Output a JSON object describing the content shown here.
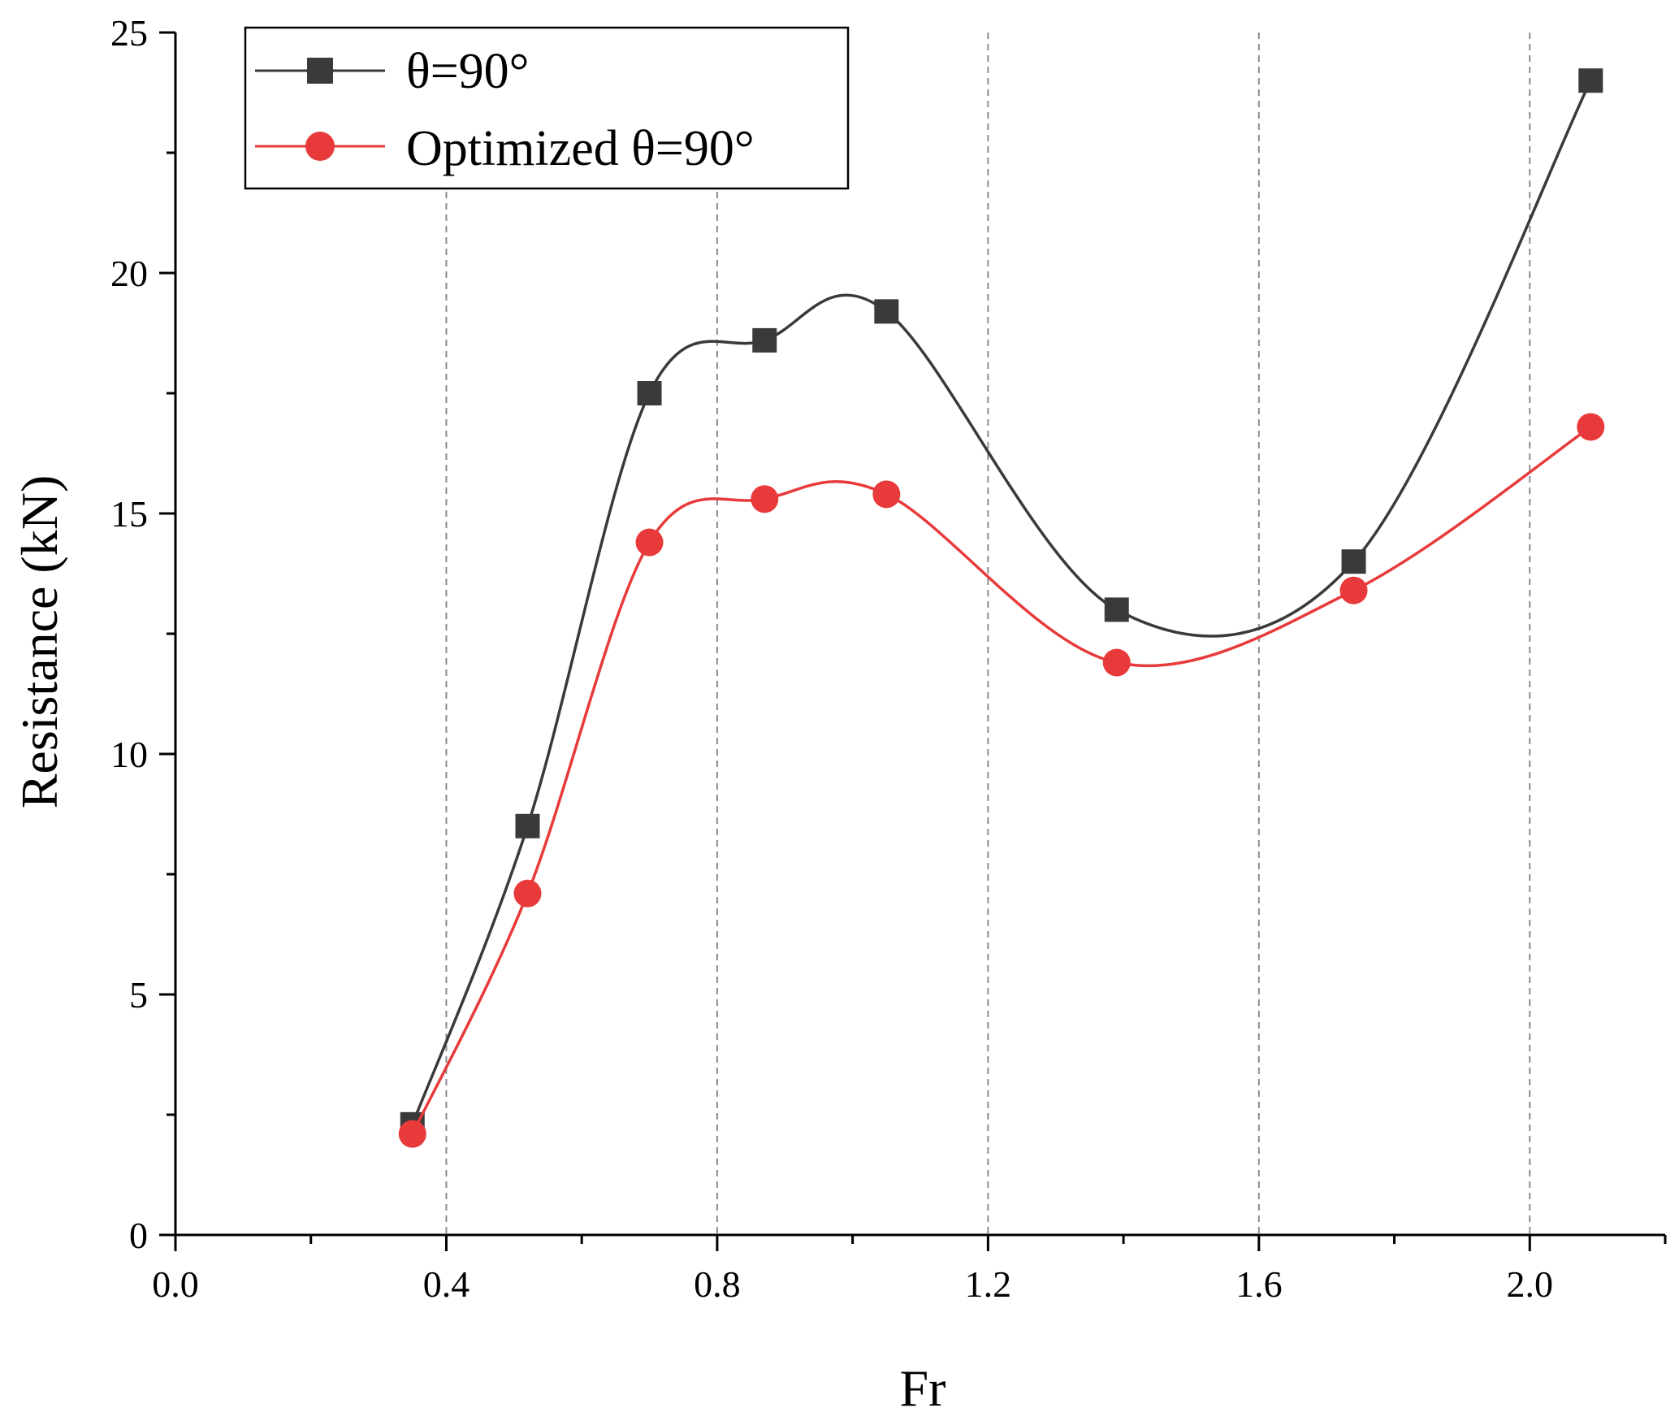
{
  "chart_data": {
    "type": "line",
    "title": "",
    "xlabel": "Fr",
    "ylabel": "Resistance (kN)",
    "xlim": [
      0.0,
      2.2
    ],
    "ylim": [
      0,
      25
    ],
    "xticks": [
      "0.0",
      "0.4",
      "0.8",
      "1.2",
      "1.6",
      "2.0"
    ],
    "yticks": [
      "0",
      "5",
      "10",
      "15",
      "20",
      "25"
    ],
    "xtick_values": [
      0.0,
      0.4,
      0.8,
      1.2,
      1.6,
      2.0
    ],
    "ytick_values": [
      0,
      5,
      10,
      15,
      20,
      25
    ],
    "gridlines_x": [
      0.4,
      0.8,
      1.2,
      1.6,
      2.0
    ],
    "grid": "vertical dashed",
    "legend_position": "top-left",
    "series": [
      {
        "name": "θ=90°",
        "color": "#3a3a3a",
        "marker": "square",
        "x": [
          0.35,
          0.52,
          0.7,
          0.87,
          1.05,
          1.39,
          1.74,
          2.09
        ],
        "values": [
          2.3,
          8.5,
          17.5,
          18.6,
          19.2,
          13.0,
          14.0,
          24.0
        ]
      },
      {
        "name": "Optimized θ=90°",
        "color": "#e83a3a",
        "marker": "circle",
        "x": [
          0.35,
          0.52,
          0.7,
          0.87,
          1.05,
          1.39,
          1.74,
          2.09
        ],
        "values": [
          2.1,
          7.1,
          14.4,
          15.3,
          15.4,
          11.9,
          13.4,
          16.8
        ]
      }
    ]
  }
}
